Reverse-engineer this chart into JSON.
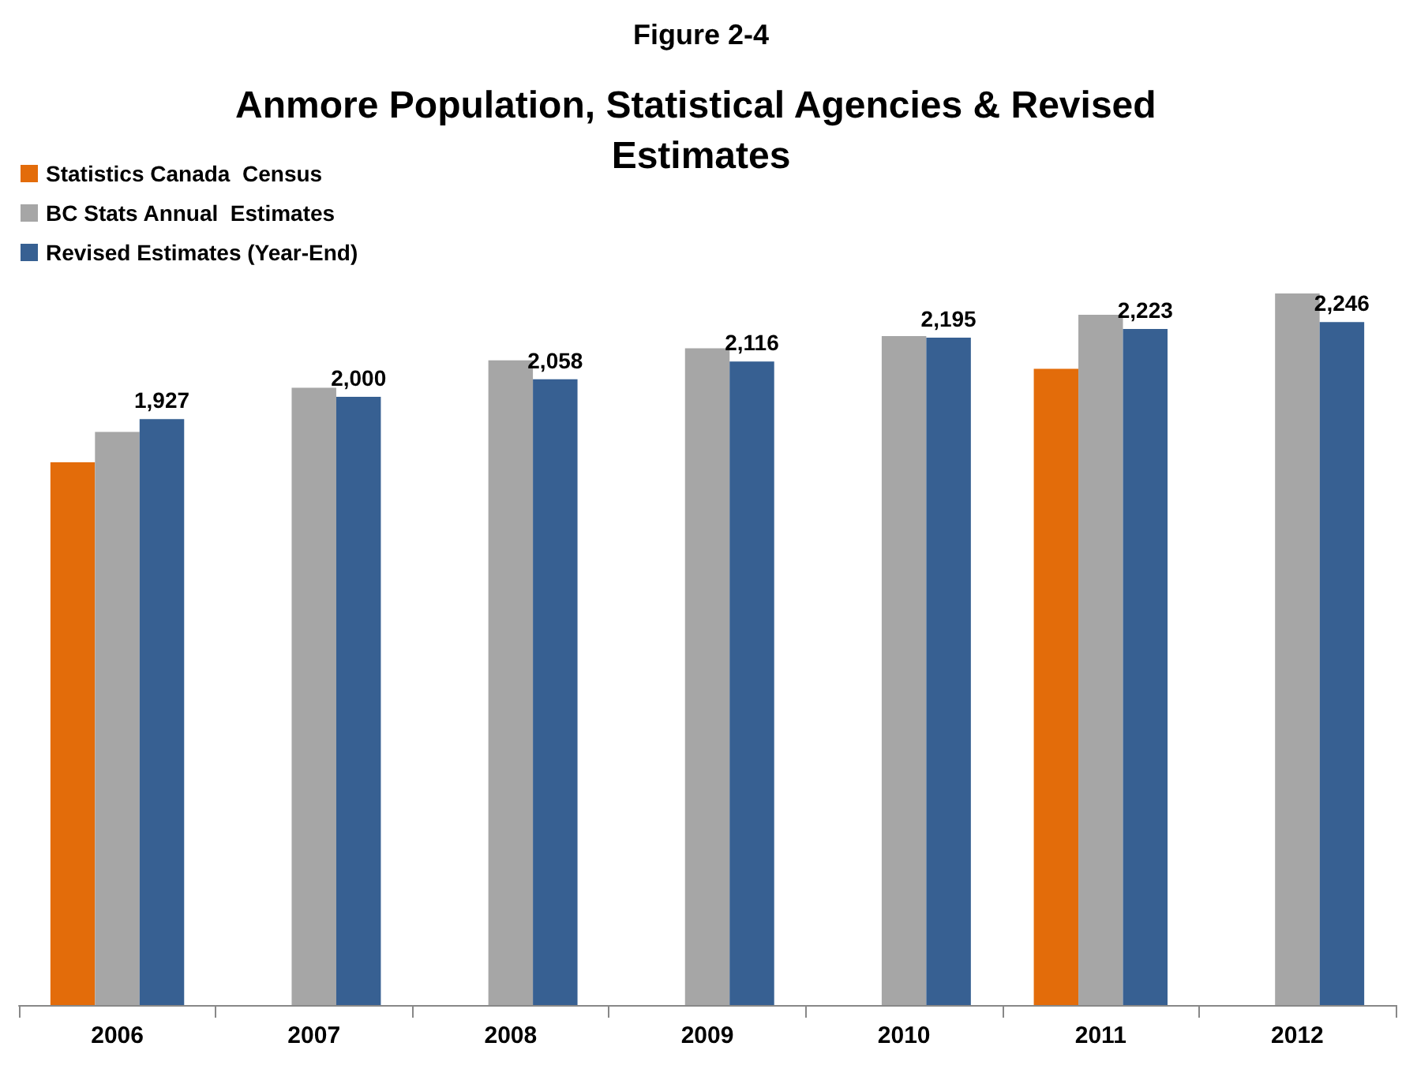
{
  "chart_data": {
    "type": "bar",
    "title": "Anmore Population, Statistical Agencies & Revised Estimates",
    "subtitle": "Figure 2-4",
    "categories": [
      "2006",
      "2007",
      "2008",
      "2009",
      "2010",
      "2011",
      "2012"
    ],
    "series": [
      {
        "name": "Statistics Canada  Census",
        "color": "#e36c0a",
        "values": [
          1785,
          null,
          null,
          null,
          null,
          2092,
          null
        ]
      },
      {
        "name": "BC Stats Annual  Estimates",
        "color": "#a6a6a6",
        "values": [
          1885,
          2030,
          2120,
          2160,
          2200,
          2270,
          2340
        ]
      },
      {
        "name": "Revised Estimates (Year-End)",
        "color": "#376092",
        "values": [
          1927,
          2000,
          2058,
          2116,
          2195,
          2223,
          2246
        ],
        "value_labels": [
          "1,927",
          "2,000",
          "2,058",
          "2,116",
          "2,195",
          "2,223",
          "2,246"
        ]
      }
    ],
    "legend": "top left"
  }
}
